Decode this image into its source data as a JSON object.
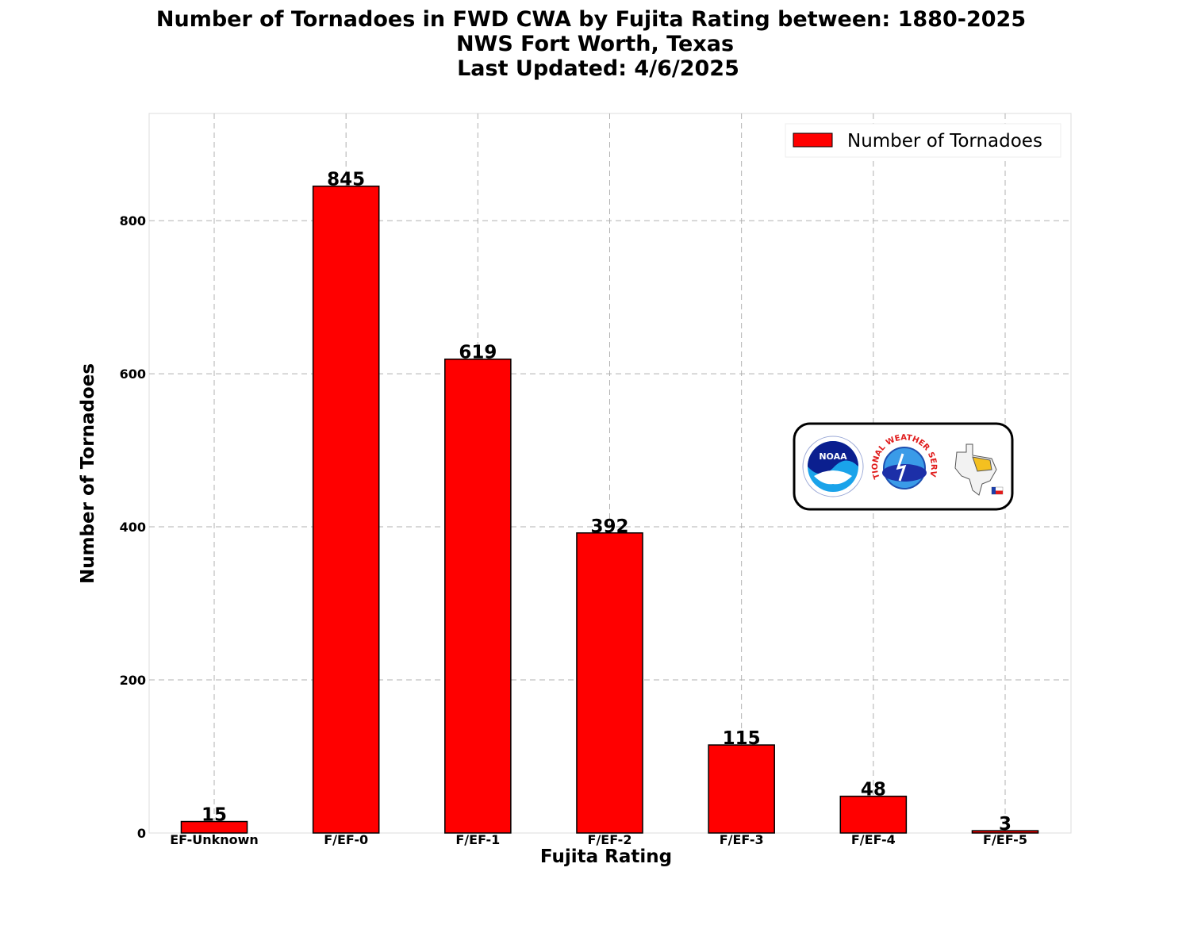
{
  "chart_data": {
    "type": "bar",
    "title": [
      "Number of Tornadoes in FWD CWA by Fujita Rating between: 1880-2025",
      "NWS Fort Worth, Texas",
      "Last Updated: 4/6/2025"
    ],
    "xlabel": "Fujita Rating",
    "ylabel": "Number of Tornadoes",
    "categories": [
      "EF-Unknown",
      "F/EF-0",
      "F/EF-1",
      "F/EF-2",
      "F/EF-3",
      "F/EF-4",
      "F/EF-5"
    ],
    "series": [
      {
        "name": "Number of Tornadoes",
        "values": [
          15,
          845,
          619,
          392,
          115,
          48,
          3
        ],
        "color": "#ff0000"
      }
    ],
    "ylim": [
      0,
      940
    ],
    "yticks": [
      0,
      200,
      400,
      600,
      800
    ],
    "grid": true,
    "legend_position": "top-right",
    "bar_edge_color": "#000000"
  },
  "logos": {
    "icons": [
      "noaa-logo",
      "nws-logo",
      "fwd-texas-logo"
    ],
    "noaa_text": "NOAA",
    "nws_text": "NATIONAL WEATHER SERVICE"
  }
}
